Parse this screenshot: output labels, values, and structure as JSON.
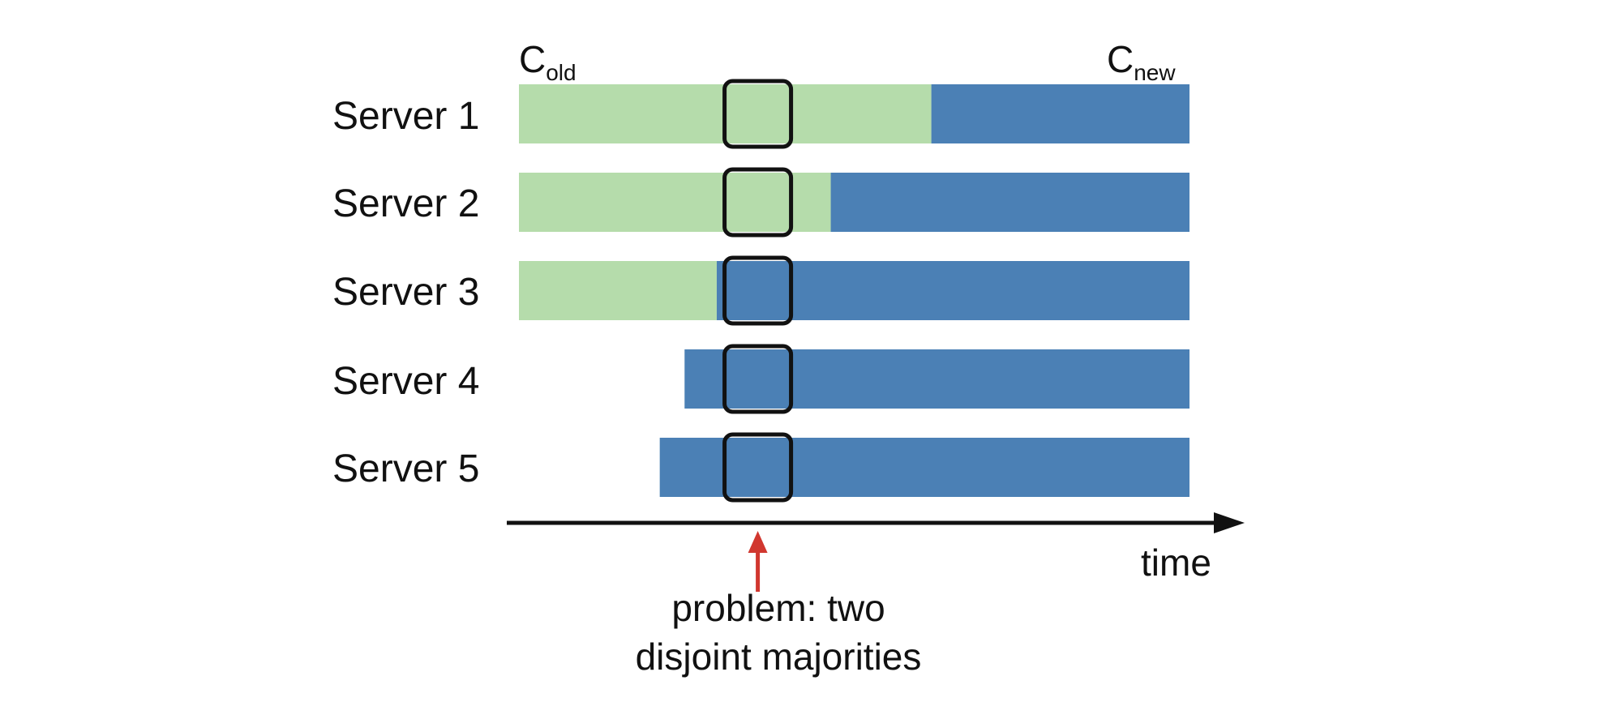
{
  "colors": {
    "old_config": "#b5dcab",
    "new_config": "#4b80b5",
    "arrow_problem": "#d1372f",
    "frame": "#111111"
  },
  "labels": {
    "c_old": "C",
    "c_old_sub": "old",
    "c_new": "C",
    "c_new_sub": "new",
    "time": "time",
    "problem_line1": "problem: two",
    "problem_line2": "disjoint majorities"
  },
  "servers": [
    {
      "name": "Server 1",
      "old_from": 0.0,
      "switch_at": 0.615
    },
    {
      "name": "Server 2",
      "old_from": 0.0,
      "switch_at": 0.465
    },
    {
      "name": "Server 3",
      "old_from": 0.0,
      "switch_at": 0.295
    },
    {
      "name": "Server 4",
      "old_from": null,
      "switch_at": 0.247
    },
    {
      "name": "Server 5",
      "old_from": null,
      "switch_at": 0.21
    }
  ],
  "problem_marker_at": 0.355
}
